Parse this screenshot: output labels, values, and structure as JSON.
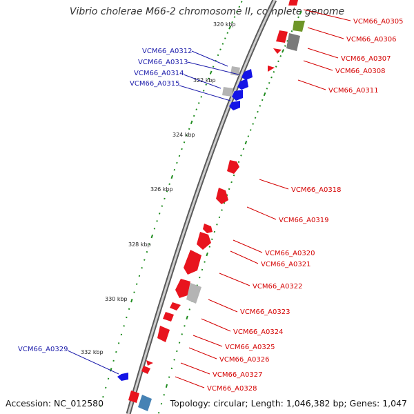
{
  "title": "Vibrio cholerae M66-2 chromosome II, complete genome",
  "footer": {
    "accession": "Accession: NC_012580",
    "topology": "Topology: circular; Length: 1,046,382 bp; Genes: 1,047"
  },
  "ticks": [
    "320 kbp",
    "322 kbp",
    "324 kbp",
    "326 kbp",
    "328 kbp",
    "330 kbp",
    "332 kbp"
  ],
  "genes_right": [
    "VCM66_A0305",
    "VCM66_A0306",
    "VCM66_A0307",
    "VCM66_A0308",
    "VCM66_A0311",
    "VCM66_A0318",
    "VCM66_A0319",
    "VCM66_A0320",
    "VCM66_A0321",
    "VCM66_A0322",
    "VCM66_A0323",
    "VCM66_A0324",
    "VCM66_A0325",
    "VCM66_A0326",
    "VCM66_A0327",
    "VCM66_A0328"
  ],
  "genes_left": [
    "VCM66_A0312",
    "VCM66_A0313",
    "VCM66_A0314",
    "VCM66_A0315",
    "VCM66_A0329"
  ],
  "colors": {
    "forward_strand": "#e8141e",
    "reverse_strand": "#1414e6",
    "hypothetical": "#b4b4b4",
    "rna": "#6e9628",
    "other": "#4682b4",
    "backbone": "#8c8c8c",
    "tick_dots": "#1e8c1e",
    "label_right": "#d40000",
    "label_left": "#1a1aaa"
  }
}
